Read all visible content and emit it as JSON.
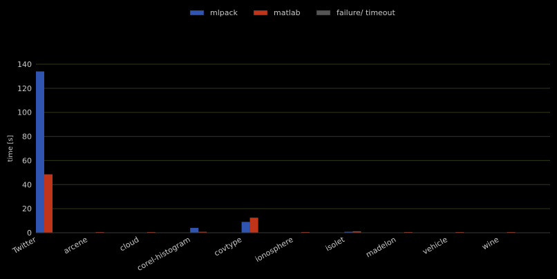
{
  "chart_data": {
    "type": "bar",
    "title": "",
    "xlabel": "",
    "ylabel": "time [s]",
    "ylim": [
      0,
      140
    ],
    "yticks": [
      0,
      20,
      40,
      60,
      80,
      100,
      120,
      140
    ],
    "grid": true,
    "legend_position": "top-center",
    "categories": [
      "Twitter",
      "arcene",
      "cloud",
      "corel-histogram",
      "covtype",
      "ionosphere",
      "isolet",
      "madelon",
      "vehicle",
      "wine"
    ],
    "series": [
      {
        "name": "mlpack",
        "color": "#2f55b0",
        "values": [
          134,
          0,
          0,
          4,
          9,
          0,
          0.8,
          0,
          0,
          0
        ]
      },
      {
        "name": "matlab",
        "color": "#c0341a",
        "values": [
          48.5,
          0.2,
          0.2,
          0.8,
          12.5,
          0.2,
          1.2,
          0.2,
          0.2,
          0.2
        ]
      },
      {
        "name": "failure/ timeout",
        "color": "#555555",
        "values": [
          0,
          0,
          0,
          0,
          0,
          0,
          0,
          0,
          0,
          0
        ]
      }
    ]
  }
}
